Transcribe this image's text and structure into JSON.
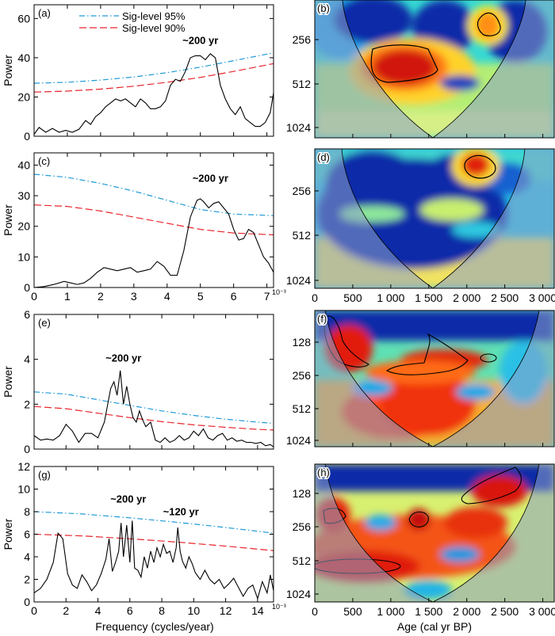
{
  "figure": {
    "bottom_xlabel_left": "Frequency (cycles/year)",
    "bottom_xlabel_right": "Age (cal yr BP)",
    "x_multiplier": "10⁻³"
  },
  "chart_data": [
    {
      "panel": "(a)",
      "type": "line",
      "ylabel": "Power",
      "xlim": [
        0,
        7.2
      ],
      "ylim": [
        0,
        67
      ],
      "yticks": [
        0,
        20,
        40,
        60
      ],
      "xticks": [
        0,
        1,
        2,
        3,
        4,
        5,
        6,
        7
      ],
      "show_xticklabels": false,
      "legend": [
        "Sig-level 95%",
        "Sig-level 90%"
      ],
      "annotations": [
        {
          "text": "~200 yr",
          "x": 5.0,
          "y": 47
        }
      ],
      "series": [
        {
          "name": "Sig-level 95%",
          "style": "dashdot",
          "color": "#1f9ad6",
          "x": [
            0,
            1,
            2,
            3,
            4,
            5,
            6,
            7.2
          ],
          "y": [
            27,
            27.5,
            28.6,
            30.2,
            32.4,
            35.2,
            38.5,
            42.5
          ]
        },
        {
          "name": "Sig-level 90%",
          "style": "dashed",
          "color": "#e8262d",
          "x": [
            0,
            1,
            2,
            3,
            4,
            5,
            6,
            7.2
          ],
          "y": [
            22.5,
            23,
            24,
            25.5,
            27.5,
            30,
            33,
            37
          ]
        },
        {
          "name": "",
          "style": "solid",
          "color": "#000000",
          "x": [
            0,
            0.15,
            0.35,
            0.55,
            0.75,
            0.95,
            1.15,
            1.35,
            1.55,
            1.7,
            1.85,
            2.0,
            2.15,
            2.3,
            2.45,
            2.6,
            2.75,
            2.9,
            3.05,
            3.2,
            3.35,
            3.5,
            3.65,
            3.8,
            3.95,
            4.1,
            4.25,
            4.4,
            4.55,
            4.7,
            4.85,
            5.0,
            5.15,
            5.3,
            5.45,
            5.6,
            5.75,
            5.9,
            6.05,
            6.2,
            6.35,
            6.5,
            6.65,
            6.8,
            6.95,
            7.1,
            7.2
          ],
          "y": [
            1,
            4.5,
            2,
            4,
            2,
            3,
            2,
            3.5,
            8,
            6,
            10,
            12,
            15,
            17,
            19,
            18,
            19,
            17,
            15,
            19,
            17,
            14,
            14,
            15,
            18,
            26,
            29,
            28,
            33,
            40,
            41,
            41,
            39,
            42,
            40,
            26,
            19,
            14,
            11,
            15,
            9,
            7,
            5,
            5,
            7,
            12,
            22
          ]
        }
      ]
    },
    {
      "panel": "(c)",
      "type": "line",
      "ylabel": "Power",
      "xlim": [
        0,
        7.2
      ],
      "ylim": [
        0,
        44
      ],
      "yticks": [
        0,
        10,
        20,
        30,
        40
      ],
      "xticks": [
        0,
        1,
        2,
        3,
        4,
        5,
        6,
        7
      ],
      "show_xticklabels": true,
      "annotations": [
        {
          "text": "~200 yr",
          "x": 5.3,
          "y": 34.5
        }
      ],
      "series": [
        {
          "name": "Sig-level 95%",
          "style": "dashdot",
          "color": "#1f9ad6",
          "x": [
            0,
            1,
            2,
            3,
            4,
            5,
            6,
            7.2
          ],
          "y": [
            37,
            36,
            34,
            31.5,
            28.5,
            25.5,
            24,
            23.5
          ]
        },
        {
          "name": "Sig-level 90%",
          "style": "dashed",
          "color": "#e8262d",
          "x": [
            0,
            1,
            2,
            3,
            4,
            5,
            6,
            7.2
          ],
          "y": [
            27,
            26.5,
            25,
            23,
            21,
            19,
            17.8,
            17.2
          ]
        },
        {
          "name": "",
          "style": "solid",
          "color": "#000000",
          "x": [
            0,
            0.3,
            0.6,
            0.9,
            1.1,
            1.3,
            1.5,
            1.7,
            1.9,
            2.1,
            2.3,
            2.5,
            2.7,
            2.9,
            3.1,
            3.3,
            3.5,
            3.7,
            3.9,
            4.1,
            4.3,
            4.5,
            4.7,
            4.9,
            5.0,
            5.1,
            5.25,
            5.4,
            5.55,
            5.7,
            5.85,
            6.0,
            6.15,
            6.3,
            6.45,
            6.6,
            6.75,
            6.9,
            7.05,
            7.2
          ],
          "y": [
            0,
            0.3,
            1,
            2,
            1.5,
            1,
            1.5,
            3,
            5,
            6.5,
            6,
            5.5,
            6,
            6.5,
            5,
            5.5,
            6,
            8.5,
            7,
            4,
            4,
            12,
            23,
            28.5,
            29,
            28,
            26,
            27.5,
            28,
            26,
            24,
            19,
            15.5,
            16,
            19,
            18,
            14,
            10,
            8,
            5
          ]
        }
      ]
    },
    {
      "panel": "(e)",
      "type": "line",
      "ylabel": "Power",
      "xlim": [
        0,
        15
      ],
      "ylim": [
        0,
        6
      ],
      "yticks": [
        0,
        2,
        4,
        6
      ],
      "xticks": [
        0,
        2,
        4,
        6,
        8,
        10,
        12,
        14
      ],
      "show_xticklabels": false,
      "annotations": [
        {
          "text": "~200 yr",
          "x": 5.6,
          "y": 3.9
        }
      ],
      "series": [
        {
          "name": "Sig-level 95%",
          "style": "dashdot",
          "color": "#1f9ad6",
          "x": [
            0,
            2,
            4,
            6,
            8,
            10,
            12,
            14,
            15
          ],
          "y": [
            2.55,
            2.45,
            2.2,
            1.95,
            1.7,
            1.5,
            1.33,
            1.2,
            1.15
          ]
        },
        {
          "name": "Sig-level 90%",
          "style": "dashed",
          "color": "#e8262d",
          "x": [
            0,
            2,
            4,
            6,
            8,
            10,
            12,
            14,
            15
          ],
          "y": [
            1.9,
            1.8,
            1.6,
            1.4,
            1.22,
            1.08,
            0.97,
            0.88,
            0.85
          ]
        },
        {
          "name": "",
          "style": "solid",
          "color": "#000000",
          "x": [
            0,
            0.4,
            0.8,
            1.2,
            1.6,
            2.0,
            2.4,
            2.8,
            3.2,
            3.6,
            4.0,
            4.4,
            4.8,
            5.0,
            5.2,
            5.4,
            5.6,
            5.8,
            6.0,
            6.2,
            6.4,
            6.6,
            6.8,
            7.0,
            7.3,
            7.6,
            7.9,
            8.2,
            8.5,
            8.8,
            9.1,
            9.4,
            9.7,
            10.0,
            10.3,
            10.6,
            10.9,
            11.2,
            11.5,
            11.8,
            12.1,
            12.4,
            12.7,
            13.0,
            13.3,
            13.6,
            13.9,
            14.2,
            14.5,
            14.8,
            15.0
          ],
          "y": [
            0.6,
            0.4,
            0.45,
            0.4,
            0.6,
            1.1,
            0.8,
            0.3,
            0.7,
            0.7,
            0.5,
            1.2,
            2.7,
            3.0,
            2.4,
            3.5,
            2.0,
            2.8,
            2.0,
            1.4,
            1.2,
            1.7,
            1.3,
            1.0,
            1.2,
            0.4,
            0.3,
            0.5,
            0.3,
            0.4,
            0.6,
            0.4,
            0.5,
            0.8,
            0.6,
            0.9,
            0.5,
            0.4,
            0.6,
            0.7,
            0.4,
            0.5,
            0.35,
            0.4,
            0.3,
            0.3,
            0.25,
            0.3,
            0.15,
            0.2,
            0.1
          ]
        }
      ]
    },
    {
      "panel": "(g)",
      "type": "line",
      "ylabel": "Power",
      "xlim": [
        0,
        15
      ],
      "ylim": [
        0,
        12
      ],
      "yticks": [
        0,
        2,
        4,
        6,
        8,
        10,
        12
      ],
      "xticks": [
        0,
        2,
        4,
        6,
        8,
        10,
        12,
        14
      ],
      "show_xticklabels": true,
      "annotations": [
        {
          "text": "~200 yr",
          "x": 5.9,
          "y": 8.8
        },
        {
          "text": "~120 yr",
          "x": 9.2,
          "y": 7.7
        }
      ],
      "series": [
        {
          "name": "Sig-level 95%",
          "style": "dashdot",
          "color": "#1f9ad6",
          "x": [
            0,
            3,
            6,
            9,
            12,
            15
          ],
          "y": [
            8.0,
            7.8,
            7.45,
            7.05,
            6.6,
            6.1
          ]
        },
        {
          "name": "Sig-level 90%",
          "style": "dashed",
          "color": "#e8262d",
          "x": [
            0,
            3,
            6,
            9,
            12,
            15
          ],
          "y": [
            6.0,
            5.85,
            5.6,
            5.3,
            4.95,
            4.55
          ]
        },
        {
          "name": "",
          "style": "solid",
          "color": "#000000",
          "x": [
            0,
            0.4,
            0.8,
            1.2,
            1.5,
            1.8,
            2.1,
            2.4,
            2.7,
            3.0,
            3.3,
            3.6,
            3.9,
            4.2,
            4.5,
            4.7,
            4.9,
            5.1,
            5.3,
            5.45,
            5.6,
            5.8,
            6.0,
            6.15,
            6.3,
            6.5,
            6.7,
            6.9,
            7.1,
            7.3,
            7.5,
            7.7,
            7.9,
            8.1,
            8.3,
            8.5,
            8.7,
            8.9,
            9.0,
            9.15,
            9.3,
            9.5,
            9.7,
            9.9,
            10.1,
            10.4,
            10.7,
            11.0,
            11.3,
            11.6,
            11.9,
            12.2,
            12.5,
            12.8,
            13.1,
            13.4,
            13.7,
            14.0,
            14.3,
            14.6,
            14.8,
            15.0
          ],
          "y": [
            0.8,
            1.2,
            2.0,
            3.5,
            6.1,
            5.6,
            2.5,
            1.5,
            1.2,
            2.4,
            1.8,
            1.0,
            1.5,
            2.5,
            3.8,
            5.6,
            2.7,
            3.5,
            4.5,
            7.0,
            4.0,
            6.8,
            3.5,
            7.2,
            3.0,
            2.8,
            2.2,
            4.0,
            3.0,
            4.5,
            3.5,
            4.8,
            4.0,
            5.1,
            4.3,
            4.5,
            3.5,
            4.8,
            6.6,
            4.5,
            3.6,
            3.0,
            4.0,
            3.4,
            2.6,
            2.0,
            2.8,
            2.0,
            1.6,
            2.0,
            1.2,
            1.6,
            2.1,
            1.3,
            0.5,
            1.2,
            1.5,
            0.3,
            1.8,
            0.8,
            2.4,
            1.0
          ]
        }
      ]
    },
    {
      "panel": "(b)",
      "type": "heatmap",
      "subtype": "wavelet-power-spectrum",
      "yticks": [
        "256",
        "512",
        "1024"
      ],
      "show_xticklabels": false
    },
    {
      "panel": "(d)",
      "type": "heatmap",
      "subtype": "wavelet-power-spectrum",
      "yticks": [
        "256",
        "512",
        "1024"
      ],
      "show_xticklabels": true,
      "xticks": [
        "0",
        "500",
        "1 000",
        "1 500",
        "2 000",
        "2 500",
        "3 000"
      ]
    },
    {
      "panel": "(f)",
      "type": "heatmap",
      "subtype": "wavelet-power-spectrum",
      "yticks": [
        "128",
        "256",
        "512",
        "1024"
      ],
      "show_xticklabels": false
    },
    {
      "panel": "(h)",
      "type": "heatmap",
      "subtype": "wavelet-power-spectrum",
      "yticks": [
        "128",
        "256",
        "512",
        "1024"
      ],
      "show_xticklabels": true,
      "xticks": [
        "0",
        "500",
        "1 000",
        "1 500",
        "2 000",
        "2 500",
        "3 000"
      ]
    }
  ]
}
